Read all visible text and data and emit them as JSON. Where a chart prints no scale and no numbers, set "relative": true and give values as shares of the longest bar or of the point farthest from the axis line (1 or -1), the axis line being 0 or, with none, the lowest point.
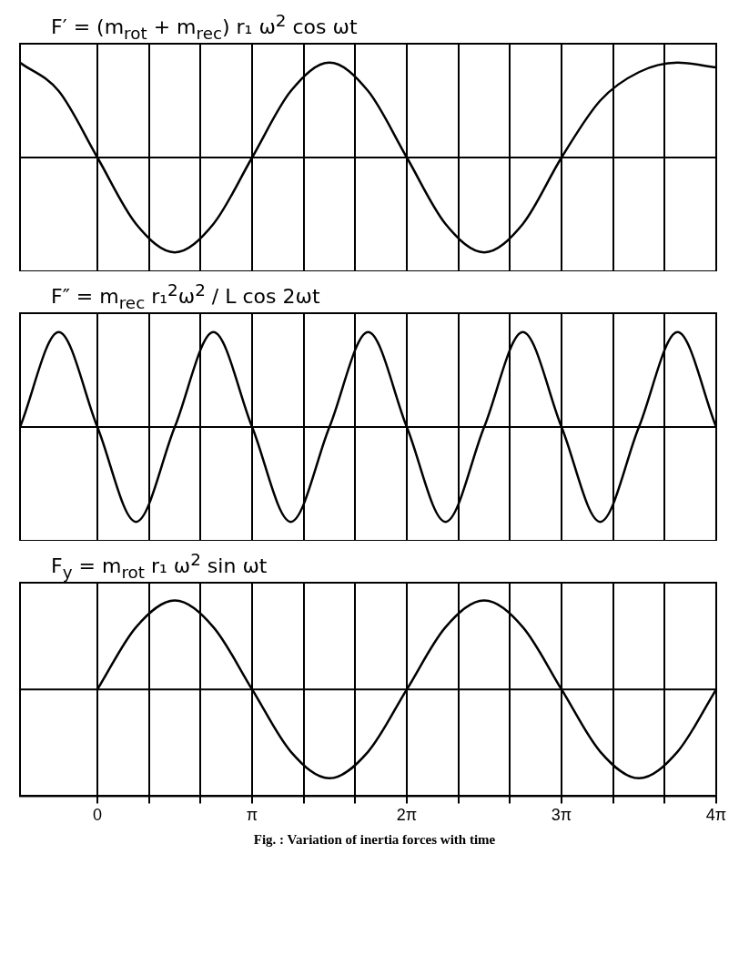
{
  "chart_data": [
    {
      "type": "line",
      "relative": true,
      "annotations": [
        "F′ = (m$_{rot}$ + m$_{rec}$) r₁ ω$^{2}$ cos ωt"
      ],
      "x": [
        -1.571,
        -0.785,
        0,
        0.785,
        1.571,
        2.356,
        3.142,
        3.927,
        4.712,
        5.498,
        6.283,
        7.069,
        7.854,
        8.639,
        9.425,
        10.21,
        10.996,
        11.781,
        12.566
      ],
      "series": [
        {
          "color": "#000000",
          "values": [
            1,
            0.7,
            0,
            -0.7,
            -1,
            -0.7,
            0,
            0.7,
            1,
            0.7,
            0,
            -0.7,
            -1,
            -0.7,
            0,
            0.6,
            0.9,
            1,
            0.95
          ]
        }
      ],
      "xlim": [
        -1.571,
        12.566
      ],
      "xticks": [
        {
          "value": 0,
          "label": null
        },
        {
          "value": 1.047,
          "label": null
        },
        {
          "value": 2.094,
          "label": null
        },
        {
          "value": 3.142,
          "label": null
        },
        {
          "value": 4.189,
          "label": null
        },
        {
          "value": 5.236,
          "label": null
        },
        {
          "value": 6.283,
          "label": null
        },
        {
          "value": 7.33,
          "label": null
        },
        {
          "value": 8.378,
          "label": null
        },
        {
          "value": 9.425,
          "label": null
        },
        {
          "value": 10.472,
          "label": null
        },
        {
          "value": 11.519,
          "label": null
        },
        {
          "value": 12.566,
          "label": null
        }
      ],
      "grid": "x",
      "tick_labels": false,
      "marker": "none"
    },
    {
      "type": "line",
      "relative": true,
      "annotations": [
        "F″ = m$_{rec}$ r₁$^{2}$ω$^{2}$ / L cos 2ωt"
      ],
      "x": [
        -1.571,
        -0.785,
        0,
        0.785,
        1.571,
        2.356,
        3.142,
        3.927,
        4.712,
        5.498,
        6.283,
        7.069,
        7.854,
        8.639,
        9.425,
        10.21,
        10.996,
        11.781,
        12.566
      ],
      "series": [
        {
          "color": "#000000",
          "values": [
            0,
            1,
            0,
            -1,
            0,
            1,
            0,
            -1,
            0,
            1,
            0,
            -1,
            0,
            1,
            0,
            -1,
            0,
            1,
            0
          ]
        }
      ],
      "xlim": [
        -1.571,
        12.566
      ],
      "xticks": [
        {
          "value": 0,
          "label": null
        },
        {
          "value": 1.047,
          "label": null
        },
        {
          "value": 2.094,
          "label": null
        },
        {
          "value": 3.142,
          "label": null
        },
        {
          "value": 4.189,
          "label": null
        },
        {
          "value": 5.236,
          "label": null
        },
        {
          "value": 6.283,
          "label": null
        },
        {
          "value": 7.33,
          "label": null
        },
        {
          "value": 8.378,
          "label": null
        },
        {
          "value": 9.425,
          "label": null
        },
        {
          "value": 10.472,
          "label": null
        },
        {
          "value": 11.519,
          "label": null
        },
        {
          "value": 12.566,
          "label": null
        }
      ],
      "grid": "x",
      "tick_labels": false,
      "marker": "none"
    },
    {
      "type": "line",
      "relative": true,
      "annotations": [
        "F$_{y}$ = m$_{rot}$ r₁ ω$^{2}$ sin ωt",
        "Fig. : Variation of inertia forces with time"
      ],
      "x": [
        0,
        0.785,
        1.571,
        2.356,
        3.142,
        3.927,
        4.712,
        5.498,
        6.283,
        7.069,
        7.854,
        8.639,
        9.425,
        10.21,
        10.996,
        11.781,
        12.566
      ],
      "series": [
        {
          "color": "#000000",
          "values": [
            0,
            0.7,
            1,
            0.7,
            0,
            -0.7,
            -1,
            -0.7,
            0,
            0.7,
            1,
            0.7,
            0,
            -0.7,
            -1,
            -0.7,
            0
          ]
        }
      ],
      "xlim": [
        -1.571,
        12.566
      ],
      "xticks": [
        {
          "value": 0,
          "label": "0"
        },
        {
          "value": 1.047,
          "label": null
        },
        {
          "value": 2.094,
          "label": null
        },
        {
          "value": 3.142,
          "label": "π"
        },
        {
          "value": 4.189,
          "label": null
        },
        {
          "value": 5.236,
          "label": null
        },
        {
          "value": 6.283,
          "label": "2π"
        },
        {
          "value": 7.33,
          "label": null
        },
        {
          "value": 8.378,
          "label": null
        },
        {
          "value": 9.425,
          "label": "3π"
        },
        {
          "value": 10.472,
          "label": null
        },
        {
          "value": 11.519,
          "label": null
        },
        {
          "value": 12.566,
          "label": "4π"
        }
      ],
      "grid": "x",
      "tick_labels": "x",
      "marker": "none"
    }
  ]
}
